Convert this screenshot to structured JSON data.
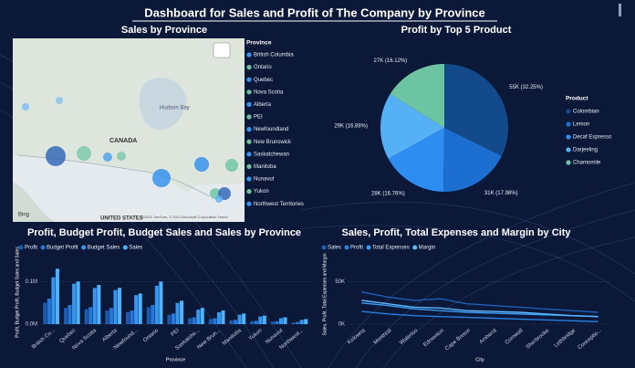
{
  "title": "Dashboard for Sales and Profit of The Company by Province",
  "map": {
    "title": "Sales by Province",
    "legend_title": "Province",
    "legend": [
      "British Columbia",
      "Ontario",
      "Quebec",
      "Nova Scotia",
      "Alberta",
      "PEI",
      "Newfoundland",
      "New Brunswick",
      "Saskatchewan",
      "Manitoba",
      "Nunavut",
      "Yukon",
      "Northwest Territories"
    ],
    "country_label": "CANADA",
    "sea_label": "Hudson Bay",
    "us_label": "UNITED STATES",
    "logo": "Bing",
    "attribution": "©2021 TomTom, © 2021 Microsoft Corporation Terms"
  },
  "chart_data": [
    {
      "type": "pie",
      "title": "Profit by Top 5 Product",
      "legend_title": "Product",
      "categories": [
        "Colombian",
        "Lemon",
        "Decaf Espresso",
        "Darjeeling",
        "Chamomile"
      ],
      "values": [
        32.25,
        17.98,
        16.76,
        16.88,
        16.12
      ],
      "value_labels": [
        "55K (32.25%)",
        "31K (17.98%)",
        "28K (16.76%)",
        "29K (16.88%)",
        "27K (16.12%)"
      ],
      "colors": [
        "#124a8c",
        "#1c6fd0",
        "#2d8df0",
        "#56b0f6",
        "#6cc4a2"
      ]
    },
    {
      "type": "bar",
      "title": "Profit, Budget Profit, Budget Sales and Sales by Province",
      "xlabel": "Province",
      "ylabel": "Profit, Budget Profit, Budget Sales and Sales",
      "categories": [
        "British Co...",
        "Quebec",
        "Nova Scotia",
        "Alberta",
        "Newfound...",
        "Ontario",
        "PEI",
        "Saskatche...",
        "New Brun...",
        "Manitoba",
        "Yukon",
        "Nunavut",
        "Northwest..."
      ],
      "series": [
        {
          "name": "Profit",
          "color": "#1a5cb0",
          "values": [
            50000,
            38000,
            35000,
            32000,
            28000,
            40000,
            22000,
            14000,
            12000,
            9000,
            7000,
            6000,
            4000
          ]
        },
        {
          "name": "Budget Profit",
          "color": "#2677d8",
          "values": [
            60000,
            45000,
            40000,
            38000,
            32000,
            45000,
            25000,
            16000,
            14000,
            10000,
            8000,
            7000,
            5000
          ]
        },
        {
          "name": "Budget Sales",
          "color": "#3796ee",
          "values": [
            110000,
            95000,
            85000,
            80000,
            68000,
            90000,
            50000,
            34000,
            28000,
            22000,
            18000,
            14000,
            10000
          ]
        },
        {
          "name": "Sales",
          "color": "#4db3ff",
          "values": [
            130000,
            100000,
            92000,
            85000,
            72000,
            100000,
            55000,
            38000,
            32000,
            25000,
            20000,
            16000,
            12000
          ]
        }
      ],
      "ylim": [
        0,
        150000
      ],
      "yticks": [
        {
          "value": 0,
          "label": "0.0M"
        },
        {
          "value": 100000,
          "label": "0.1M"
        }
      ]
    },
    {
      "type": "line",
      "title": "Sales, Profit, Total Expenses and Margin by City",
      "xlabel": "City",
      "ylabel": "Sales, Profit, Total Expenses and Margin",
      "categories": [
        "Kelowna",
        "Montreal",
        "Waterloo",
        "Edmonton",
        "Cape Breton",
        "Amherst",
        "Cornwall",
        "Sherbrooke",
        "Lethbridge",
        "Conceptio..."
      ],
      "series": [
        {
          "name": "Sales",
          "color": "#1f5fb8",
          "values": [
            38000,
            32000,
            28000,
            30000,
            24000,
            22000,
            20000,
            18000,
            16000,
            14000
          ]
        },
        {
          "name": "Profit",
          "color": "#2a7fe0",
          "values": [
            15000,
            12000,
            10000,
            9000,
            8000,
            7000,
            6000,
            5000,
            4000,
            3000
          ]
        },
        {
          "name": "Total Expenses",
          "color": "#3c9cf2",
          "values": [
            25000,
            22000,
            18000,
            16000,
            14000,
            13000,
            12000,
            11000,
            10000,
            9000
          ]
        },
        {
          "name": "Margin",
          "color": "#5cb8ff",
          "values": [
            28000,
            24000,
            20000,
            19000,
            16000,
            15000,
            14000,
            12000,
            10000,
            9000
          ]
        }
      ],
      "ylim": [
        0,
        70000
      ],
      "yticks": [
        {
          "value": 0,
          "label": "0K"
        },
        {
          "value": 50000,
          "label": "50K"
        }
      ]
    }
  ]
}
